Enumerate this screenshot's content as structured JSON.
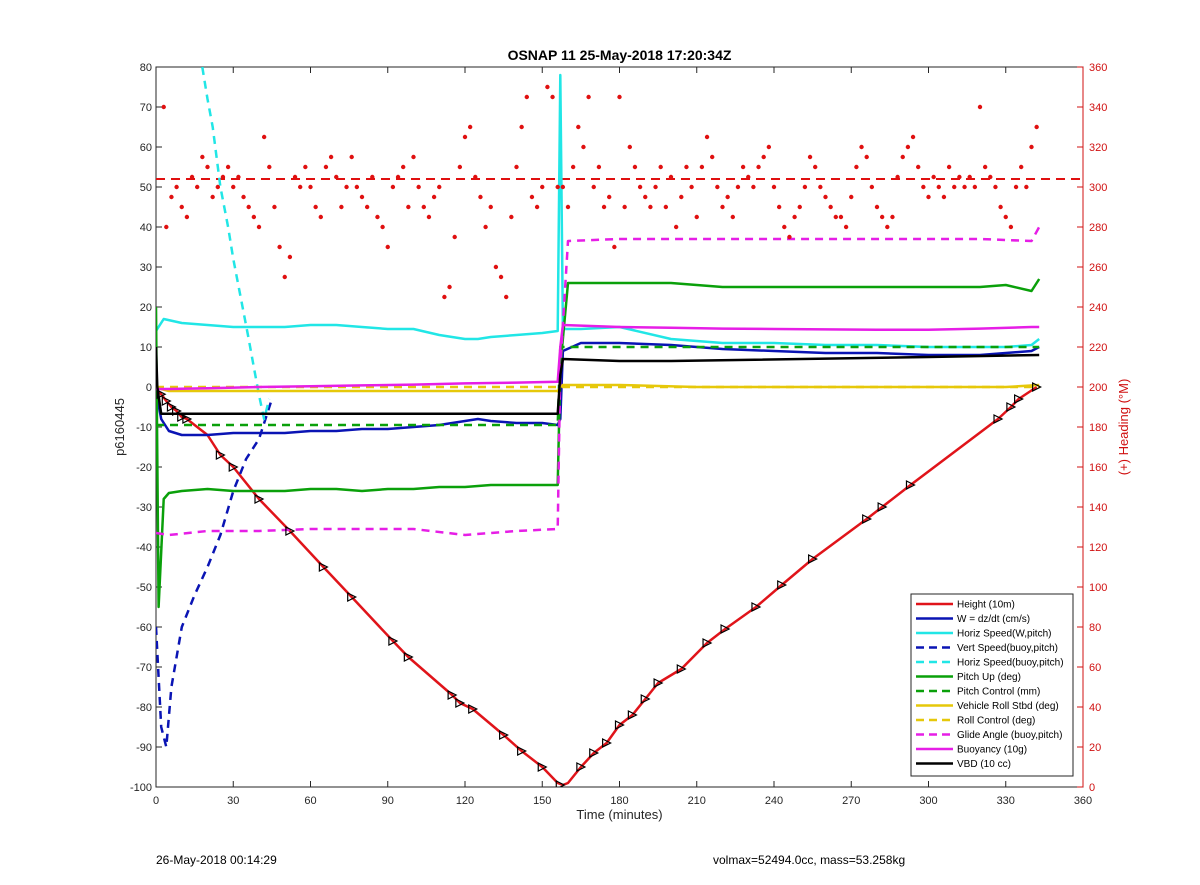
{
  "chart_data": {
    "type": "line",
    "title": "OSNAP 11 25-May-2018 17:20:34Z",
    "xlabel": "Time (minutes)",
    "ylabel": "p6160445",
    "y2label": "(+) Heading (°M)",
    "xlim": [
      0,
      360
    ],
    "ylim": [
      -100,
      80
    ],
    "y2lim": [
      0,
      360
    ],
    "xticks": [
      0,
      30,
      60,
      90,
      120,
      150,
      180,
      210,
      240,
      270,
      300,
      330,
      360
    ],
    "yticks": [
      -100,
      -90,
      -80,
      -70,
      -60,
      -50,
      -40,
      -30,
      -20,
      -10,
      0,
      10,
      20,
      30,
      40,
      50,
      60,
      70,
      80
    ],
    "y2ticks": [
      0,
      20,
      40,
      60,
      80,
      100,
      120,
      140,
      160,
      180,
      200,
      220,
      240,
      260,
      280,
      300,
      320,
      340,
      360
    ],
    "legend_position": "bottom-right",
    "colors": {
      "height": "#e0141a",
      "w": "#0a14b4",
      "horiz": "#21e6e6",
      "pitch": "#0aa00a",
      "roll": "#e6c80a",
      "glide": "#e61ee6",
      "buoy": "#e61ee6",
      "vbd": "#000000",
      "heading": "#e01010"
    },
    "series": [
      {
        "name": "Height (10m)",
        "color": "#e0141a",
        "dash": false,
        "x": [
          0,
          2,
          4,
          6,
          8,
          10,
          12,
          20,
          25,
          30,
          40,
          52,
          65,
          76,
          92,
          98,
          115,
          118,
          123,
          135,
          142,
          150,
          156,
          158,
          160,
          165,
          170,
          175,
          180,
          185,
          190,
          195,
          204,
          214,
          221,
          233,
          243,
          255,
          276,
          282,
          293,
          327,
          332,
          335,
          342
        ],
        "y": [
          -0.5,
          -1.8,
          -3.5,
          -5,
          -6,
          -7.5,
          -8,
          -12,
          -17,
          -20,
          -28,
          -36,
          -45,
          -52.5,
          -63.5,
          -67.5,
          -77,
          -79,
          -80.5,
          -87,
          -91,
          -95,
          -99,
          -99.5,
          -99,
          -95,
          -91.5,
          -89,
          -84.5,
          -82,
          -78,
          -74,
          -70.5,
          -64,
          -60.5,
          -55,
          -49.5,
          -43,
          -33,
          -30,
          -24.5,
          -8,
          -5,
          -3,
          0
        ]
      },
      {
        "name": "W = dz/dt (cm/s)",
        "color": "#0a14b4",
        "dash": false,
        "x": [
          0,
          2,
          5,
          10,
          20,
          30,
          40,
          50,
          60,
          70,
          80,
          90,
          100,
          110,
          120,
          125,
          130,
          140,
          150,
          156,
          157,
          158,
          165,
          180,
          200,
          220,
          240,
          260,
          280,
          300,
          320,
          330,
          340,
          343
        ],
        "y": [
          -1,
          -8,
          -11,
          -12,
          -12,
          -11.5,
          -11.5,
          -11.5,
          -11,
          -11,
          -10.5,
          -10.5,
          -10,
          -9.5,
          -8.5,
          -8,
          -8.5,
          -9,
          -9,
          -9.5,
          -8,
          9,
          11,
          11,
          10.5,
          9.5,
          9,
          8.5,
          8.5,
          8,
          8,
          8.5,
          9,
          10
        ]
      },
      {
        "name": "Horiz Speed(W,pitch)",
        "color": "#21e6e6",
        "dash": false,
        "x": [
          0,
          3,
          10,
          20,
          30,
          40,
          50,
          60,
          70,
          80,
          90,
          100,
          110,
          115,
          120,
          125,
          130,
          140,
          150,
          156,
          157,
          158,
          165,
          180,
          200,
          220,
          240,
          260,
          280,
          300,
          320,
          330,
          340,
          343
        ],
        "y": [
          14,
          17,
          16,
          15.5,
          15,
          15,
          15,
          15.5,
          15.5,
          15,
          14.5,
          14.5,
          13,
          12.5,
          12,
          12,
          12.5,
          13,
          13.5,
          14,
          78,
          14.5,
          14.5,
          15,
          12,
          11,
          11,
          10.5,
          10.5,
          10,
          10,
          10,
          10.5,
          12
        ]
      },
      {
        "name": "Vert Speed(buoy,pitch)",
        "color": "#0a14b4",
        "dash": true,
        "x": [
          0,
          2,
          4,
          6,
          10,
          15,
          20,
          25,
          30,
          35,
          40,
          45
        ],
        "y": [
          -60,
          -85,
          -90,
          -75,
          -60,
          -52,
          -45,
          -37,
          -26,
          -18,
          -13,
          -3
        ]
      },
      {
        "name": "Horiz Speed(buoy,pitch)",
        "color": "#21e6e6",
        "dash": true,
        "x": [
          18,
          20,
          22,
          25,
          28,
          30,
          33,
          36,
          38,
          40,
          42,
          44
        ],
        "y": [
          80,
          72,
          65,
          50,
          40,
          32,
          22,
          12,
          5,
          -2,
          -8,
          -3
        ]
      },
      {
        "name": "Pitch Up (deg)",
        "color": "#0aa00a",
        "dash": false,
        "x": [
          0,
          1,
          3,
          5,
          10,
          20,
          30,
          40,
          50,
          60,
          70,
          80,
          90,
          100,
          110,
          120,
          130,
          140,
          150,
          156,
          157,
          160,
          165,
          180,
          200,
          220,
          240,
          260,
          280,
          300,
          320,
          330,
          340,
          343
        ],
        "y": [
          20,
          -55,
          -28,
          -26.5,
          -26,
          -25.5,
          -26,
          -26,
          -26,
          -25.5,
          -25.5,
          -26,
          -25.5,
          -25.5,
          -25,
          -25,
          -24.5,
          -24.5,
          -24.5,
          -24.5,
          5,
          26,
          26,
          26,
          26,
          25,
          25,
          25,
          25,
          25,
          25,
          25.5,
          24,
          27
        ]
      },
      {
        "name": "Pitch Control (mm)",
        "color": "#0aa00a",
        "dash": true,
        "x": [
          0,
          5,
          156,
          157,
          343
        ],
        "y": [
          -9.5,
          -9.5,
          -9.5,
          10,
          10
        ]
      },
      {
        "name": "Vehicle Roll Stbd (deg)",
        "color": "#e6c80a",
        "dash": false,
        "x": [
          0,
          2,
          5,
          10,
          30,
          60,
          90,
          120,
          150,
          156,
          157,
          158,
          180,
          210,
          240,
          270,
          300,
          330,
          343
        ],
        "y": [
          0,
          -0.5,
          -1,
          -1,
          -1,
          -1,
          -1,
          -1,
          -1,
          -1,
          0,
          0.5,
          0.5,
          0,
          0,
          0,
          0,
          0,
          0.5
        ]
      },
      {
        "name": "Roll Control (deg)",
        "color": "#e6c80a",
        "dash": true,
        "x": [
          0,
          156,
          157,
          343
        ],
        "y": [
          0,
          0,
          0,
          0
        ]
      },
      {
        "name": "Glide Angle (buoy,pitch)",
        "color": "#e61ee6",
        "dash": true,
        "x": [
          0,
          5,
          20,
          40,
          60,
          80,
          100,
          120,
          140,
          156,
          157,
          160,
          180,
          200,
          220,
          240,
          260,
          280,
          300,
          320,
          340,
          343
        ],
        "y": [
          -36.5,
          -37,
          -36,
          -36,
          -35.5,
          -35.5,
          -35.5,
          -37,
          -36,
          -35.5,
          5,
          36.5,
          37,
          37,
          37,
          37,
          37,
          37,
          37,
          37,
          36.5,
          40
        ]
      },
      {
        "name": "Buoyancy (10g)",
        "color": "#e61ee6",
        "dash": false,
        "x": [
          0,
          5,
          20,
          40,
          60,
          80,
          100,
          120,
          140,
          156,
          157,
          158,
          180,
          200,
          220,
          240,
          260,
          280,
          300,
          320,
          340,
          343
        ],
        "y": [
          -0.5,
          -0.5,
          -0.3,
          0,
          0.2,
          0.4,
          0.6,
          0.9,
          1.1,
          1.3,
          10,
          15.5,
          15,
          14.8,
          14.6,
          14.5,
          14.4,
          14.3,
          14.3,
          14.6,
          15,
          15
        ]
      },
      {
        "name": "VBD (10 cc)",
        "color": "#000000",
        "dash": false,
        "x": [
          0,
          0.5,
          2,
          156,
          157,
          158,
          180,
          200,
          300,
          343
        ],
        "y": [
          10,
          0,
          -6.7,
          -6.7,
          3,
          7,
          6.5,
          6.5,
          7.5,
          8
        ]
      }
    ],
    "heading_reference": {
      "y2": 304
    },
    "heading_points": {
      "x": [
        3,
        4,
        6,
        8,
        10,
        12,
        14,
        16,
        18,
        20,
        22,
        24,
        26,
        28,
        30,
        32,
        34,
        36,
        38,
        40,
        42,
        44,
        46,
        48,
        50,
        52,
        54,
        56,
        58,
        60,
        62,
        64,
        66,
        68,
        70,
        72,
        74,
        76,
        78,
        80,
        82,
        84,
        86,
        88,
        90,
        92,
        94,
        96,
        98,
        100,
        102,
        104,
        106,
        108,
        110,
        112,
        114,
        116,
        118,
        120,
        122,
        124,
        126,
        128,
        130,
        132,
        134,
        136,
        138,
        140,
        142,
        144,
        146,
        148,
        150,
        152,
        154,
        156,
        158,
        160,
        162,
        164,
        166,
        168,
        170,
        172,
        174,
        176,
        178,
        180,
        182,
        184,
        186,
        188,
        190,
        192,
        194,
        196,
        198,
        200,
        202,
        204,
        206,
        208,
        210,
        212,
        214,
        216,
        218,
        220,
        222,
        224,
        226,
        228,
        230,
        232,
        234,
        236,
        238,
        240,
        242,
        244,
        246,
        248,
        250,
        252,
        254,
        256,
        258,
        260,
        262,
        264,
        266,
        268,
        270,
        272,
        274,
        276,
        278,
        280,
        282,
        284,
        286,
        288,
        290,
        292,
        294,
        296,
        298,
        300,
        302,
        304,
        306,
        308,
        310,
        312,
        314,
        316,
        318,
        320,
        322,
        324,
        326,
        328,
        330,
        332,
        334,
        336,
        338,
        340,
        342
      ],
      "y": [
        340,
        280,
        295,
        300,
        290,
        285,
        305,
        300,
        315,
        310,
        295,
        300,
        305,
        310,
        300,
        305,
        295,
        290,
        285,
        280,
        325,
        310,
        290,
        270,
        255,
        265,
        305,
        300,
        310,
        300,
        290,
        285,
        310,
        315,
        305,
        290,
        300,
        315,
        300,
        295,
        290,
        305,
        285,
        280,
        270,
        300,
        305,
        310,
        290,
        315,
        300,
        290,
        285,
        295,
        300,
        245,
        250,
        275,
        310,
        325,
        330,
        305,
        295,
        280,
        290,
        260,
        255,
        245,
        285,
        310,
        330,
        345,
        295,
        290,
        300,
        350,
        345,
        300,
        300,
        290,
        310,
        330,
        320,
        345,
        300,
        310,
        290,
        295,
        270,
        345,
        290,
        320,
        310,
        300,
        295,
        290,
        300,
        310,
        290,
        305,
        280,
        295,
        310,
        300,
        285,
        310,
        325,
        315,
        300,
        290,
        295,
        285,
        300,
        310,
        305,
        300,
        310,
        315,
        320,
        300,
        290,
        280,
        275,
        285,
        290,
        300,
        315,
        310,
        300,
        295,
        290,
        285,
        285,
        280,
        295,
        310,
        320,
        315,
        300,
        290,
        285,
        280,
        285,
        305,
        315,
        320,
        325,
        310,
        300,
        295,
        305,
        300,
        295,
        310,
        300,
        305,
        300,
        305,
        300,
        340,
        310,
        305,
        300,
        290,
        285,
        280,
        300,
        310,
        300,
        320,
        330
      ]
    },
    "markers": {
      "x": [
        2,
        4,
        6,
        8,
        10,
        12,
        25,
        30,
        40,
        52,
        65,
        76,
        92,
        98,
        115,
        118,
        123,
        135,
        142,
        150,
        157,
        165,
        170,
        175,
        180,
        185,
        190,
        195,
        204,
        214,
        221,
        233,
        243,
        255,
        276,
        282,
        293,
        327,
        332,
        335,
        342
      ],
      "y": [
        -1.8,
        -3.5,
        -5,
        -6,
        -7.5,
        -8,
        -17,
        -20,
        -28,
        -36,
        -45,
        -52.5,
        -63.5,
        -67.5,
        -77,
        -79,
        -80.5,
        -87,
        -91,
        -95,
        -99.5,
        -95,
        -91.5,
        -89,
        -84.5,
        -82,
        -78,
        -74,
        -70.5,
        -64,
        -60.5,
        -55,
        -49.5,
        -43,
        -33,
        -30,
        -24.5,
        -8,
        -5,
        -3,
        0
      ]
    }
  },
  "footer": {
    "left": "26-May-2018 00:14:29",
    "right": "volmax=52494.0cc, mass=53.258kg"
  }
}
